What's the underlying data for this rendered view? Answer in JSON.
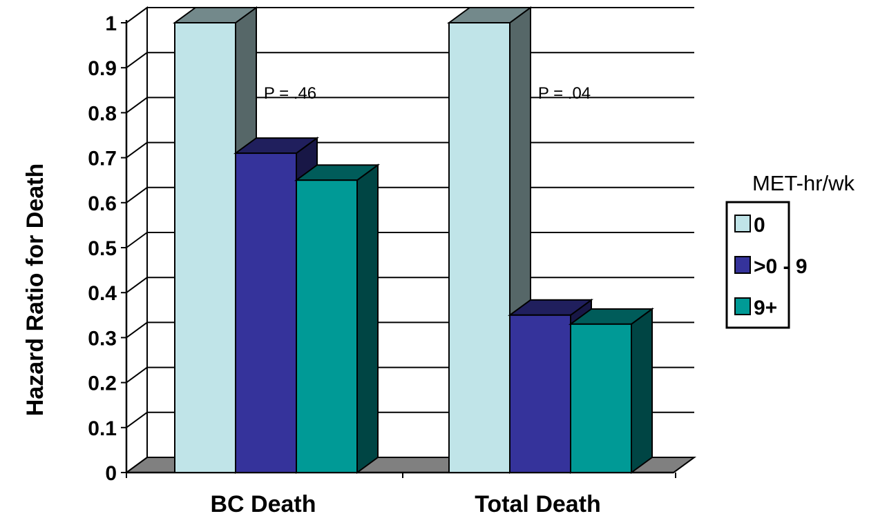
{
  "chart_data": {
    "type": "bar",
    "three_d": true,
    "categories": [
      "BC Death",
      "Total Death"
    ],
    "series": [
      {
        "name": "0",
        "values": [
          1.0,
          1.0
        ],
        "color": "#c0e4e8"
      },
      {
        "name": ">0 - 9",
        "values": [
          0.71,
          0.35
        ],
        "color": "#35339b"
      },
      {
        "name": "9+",
        "values": [
          0.65,
          0.33
        ],
        "color": "#009a96"
      }
    ],
    "ylabel": "Hazard Ratio for Death",
    "xlabel": "",
    "ylim": [
      0,
      1
    ],
    "yticks": [
      "0",
      "0.1",
      "0.2",
      "0.3",
      "0.4",
      "0.5",
      "0.6",
      "0.7",
      "0.8",
      "0.9",
      "1"
    ],
    "grid": true,
    "legend": {
      "title": "MET-hr/wk",
      "position": "right"
    },
    "annotations": [
      {
        "text": "P = .46",
        "category": "BC Death",
        "y": 0.81
      },
      {
        "text": "P = .04",
        "category": "Total Death",
        "y": 0.81
      }
    ]
  }
}
